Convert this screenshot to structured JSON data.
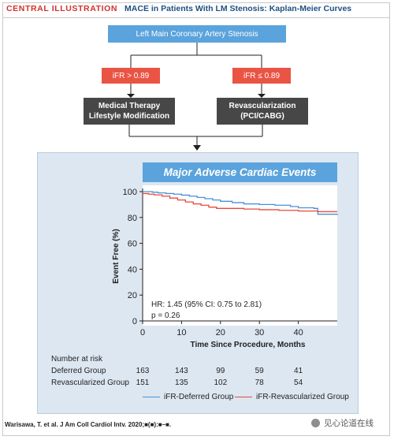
{
  "header": {
    "label": "CENTRAL ILLUSTRATION",
    "title": "MACE in Patients With LM Stenosis: Kaplan-Meier Curves"
  },
  "flow": {
    "root": "Left Main  Coronary Artery Stenosis",
    "left_criterion": "iFR > 0.89",
    "right_criterion": "iFR ≤ 0.89",
    "left_treatment": [
      "Medical Therapy",
      "Lifestyle Modification"
    ],
    "right_treatment": [
      "Revascularization",
      "(PCI/CABG)"
    ]
  },
  "colors": {
    "deferred": "#4a90d9",
    "revascularized": "#e8493e",
    "flow_blue": "#5ba3dc",
    "flow_red": "#ea5444",
    "flow_dark": "#474747",
    "panel_bg": "#dce7f1"
  },
  "chart_data": {
    "type": "line",
    "title": "Major Adverse Cardiac Events",
    "xlabel": "Time Since Procedure, Months",
    "ylabel": "Event Free (%)",
    "xlim": [
      0,
      50
    ],
    "ylim": [
      0,
      100
    ],
    "xticks": [
      0,
      10,
      20,
      30,
      40
    ],
    "yticks": [
      0,
      20,
      40,
      60,
      80,
      100
    ],
    "grid": false,
    "legend_position": "bottom",
    "series": [
      {
        "name": "iFR-Deferred Group",
        "color": "#4a90d9",
        "x": [
          0,
          1,
          2.5,
          4,
          6,
          8,
          10,
          12,
          14,
          16,
          18,
          20,
          23,
          26,
          30,
          34,
          38,
          40,
          44,
          45,
          50
        ],
        "y": [
          100,
          100,
          99.5,
          99,
          98.5,
          98,
          97.3,
          96.5,
          95.5,
          94.5,
          93.5,
          92.5,
          91.5,
          90.5,
          90,
          89.5,
          88.5,
          87.5,
          87,
          82.5,
          82
        ]
      },
      {
        "name": "iFR-Revascularized Group",
        "color": "#e8493e",
        "x": [
          0,
          1.5,
          3,
          5,
          7,
          9,
          11,
          13,
          15,
          17,
          19,
          22,
          26,
          30,
          35,
          40,
          45,
          50
        ],
        "y": [
          98.5,
          98,
          97.5,
          96.5,
          95,
          93.5,
          92,
          90.5,
          89.5,
          88,
          87,
          87,
          86.5,
          86,
          85.5,
          85,
          84.5,
          84.5
        ]
      }
    ],
    "annotation": {
      "hr": "HR: 1.45 (95% CI: 0.75 to 2.81)",
      "p": "p = 0.26"
    }
  },
  "risk_table": {
    "title": "Number at risk",
    "rows": [
      {
        "label": "Deferred Group",
        "values": [
          "163",
          "143",
          "99",
          "59",
          "41"
        ]
      },
      {
        "label": "Revascularized Group",
        "values": [
          "151",
          "135",
          "102",
          "78",
          "54"
        ]
      }
    ]
  },
  "citation": "Warisawa, T. et al. J Am Coll Cardiol Intv. 2020;■(■):■–■.",
  "watermark": "见心论道在线"
}
